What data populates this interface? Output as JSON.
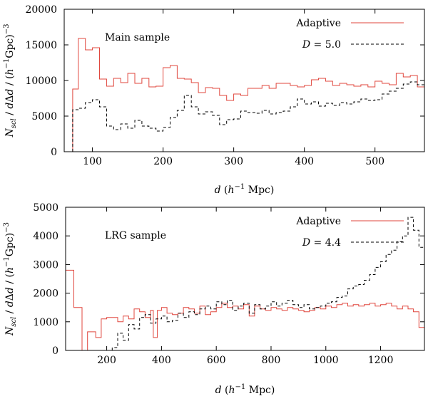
{
  "colors": {
    "adaptive": "#e0473e",
    "fixed": "#000000",
    "axis": "#000000"
  },
  "chart_data": [
    {
      "type": "step",
      "title": "",
      "annotation": "Main sample",
      "xlabel": "d (h⁻¹ Mpc)",
      "ylabel": "N_scl / dΔd / (h⁻¹Gpc)⁻³",
      "xlim": [
        60,
        570
      ],
      "ylim": [
        0,
        20000
      ],
      "xticks": [
        "100",
        "200",
        "300",
        "400",
        "500"
      ],
      "xtick_values": [
        100,
        200,
        300,
        400,
        500
      ],
      "yticks": [
        "0",
        "5000",
        "10000",
        "15000",
        "20000"
      ],
      "ytick_values": [
        0,
        5000,
        10000,
        15000,
        20000
      ],
      "legend_position": "top-right",
      "series": [
        {
          "name": "Adaptive",
          "style": "solid",
          "edges": [
            72,
            80,
            90,
            100,
            110,
            120,
            130,
            140,
            150,
            160,
            170,
            180,
            190,
            200,
            210,
            220,
            230,
            240,
            250,
            260,
            270,
            280,
            290,
            300,
            310,
            320,
            330,
            340,
            350,
            360,
            370,
            380,
            390,
            400,
            410,
            420,
            430,
            440,
            450,
            460,
            470,
            480,
            490,
            500,
            510,
            520,
            530,
            540,
            550,
            560,
            570
          ],
          "values": [
            8800,
            15900,
            14300,
            14600,
            10200,
            9200,
            10300,
            9700,
            11000,
            9600,
            10300,
            9100,
            9200,
            11800,
            12100,
            10300,
            10200,
            9700,
            8300,
            9000,
            8900,
            7900,
            7200,
            8100,
            7900,
            8900,
            8900,
            9300,
            8900,
            9600,
            9600,
            9300,
            9100,
            9300,
            10100,
            10300,
            9900,
            9300,
            9600,
            9400,
            9200,
            9400,
            9100,
            9900,
            9600,
            9400,
            11000,
            10500,
            10700,
            9100
          ]
        },
        {
          "name": "D = 5.0",
          "style": "dashed",
          "edges": [
            72,
            80,
            90,
            100,
            110,
            120,
            130,
            140,
            150,
            160,
            170,
            180,
            190,
            200,
            210,
            220,
            230,
            240,
            250,
            260,
            270,
            280,
            290,
            300,
            310,
            320,
            330,
            340,
            350,
            360,
            370,
            380,
            390,
            400,
            410,
            420,
            430,
            440,
            450,
            460,
            470,
            480,
            490,
            500,
            510,
            520,
            530,
            540,
            550,
            560,
            570
          ],
          "values": [
            5900,
            6100,
            6900,
            7300,
            6300,
            3600,
            3100,
            3900,
            3300,
            4400,
            3600,
            3300,
            2900,
            3400,
            4800,
            5800,
            7900,
            6300,
            5300,
            5600,
            5100,
            3800,
            4500,
            4600,
            5700,
            5500,
            5400,
            5800,
            5300,
            5500,
            5700,
            6300,
            7400,
            6700,
            7000,
            6400,
            6800,
            6500,
            6900,
            6700,
            7000,
            7400,
            7200,
            7300,
            8100,
            8500,
            8900,
            9500,
            9800,
            9400
          ]
        }
      ]
    },
    {
      "type": "step",
      "title": "",
      "annotation": "LRG sample",
      "xlabel": "d (h⁻¹ Mpc)",
      "ylabel": "N_scl / dΔd / (h⁻¹Gpc)⁻³",
      "xlim": [
        50,
        1360
      ],
      "ylim": [
        0,
        5000
      ],
      "xticks": [
        "200",
        "400",
        "600",
        "800",
        "1000",
        "1200"
      ],
      "xtick_values": [
        200,
        400,
        600,
        800,
        1000,
        1200
      ],
      "yticks": [
        "0",
        "1000",
        "2000",
        "3000",
        "4000",
        "5000"
      ],
      "ytick_values": [
        0,
        1000,
        2000,
        3000,
        4000,
        5000
      ],
      "legend_position": "top-right",
      "series": [
        {
          "name": "Adaptive",
          "style": "solid",
          "edges": [
            50,
            80,
            110,
            130,
            160,
            180,
            200,
            220,
            240,
            260,
            280,
            300,
            320,
            340,
            360,
            370,
            385,
            400,
            420,
            440,
            460,
            480,
            500,
            520,
            540,
            560,
            580,
            600,
            620,
            640,
            660,
            680,
            700,
            720,
            740,
            760,
            780,
            800,
            820,
            840,
            860,
            880,
            900,
            920,
            940,
            960,
            980,
            1000,
            1020,
            1040,
            1060,
            1080,
            1100,
            1120,
            1140,
            1160,
            1180,
            1200,
            1220,
            1240,
            1260,
            1280,
            1300,
            1320,
            1340,
            1360
          ],
          "values": [
            2800,
            1500,
            0,
            650,
            450,
            1100,
            1150,
            1150,
            1000,
            1200,
            1100,
            1450,
            1350,
            1150,
            1400,
            450,
            1400,
            1500,
            1300,
            1250,
            1300,
            1500,
            1450,
            1300,
            1550,
            1250,
            1350,
            1500,
            1650,
            1500,
            1550,
            1450,
            1600,
            1200,
            1550,
            1450,
            1400,
            1500,
            1450,
            1400,
            1500,
            1450,
            1400,
            1350,
            1400,
            1500,
            1450,
            1550,
            1500,
            1600,
            1650,
            1550,
            1600,
            1550,
            1600,
            1650,
            1550,
            1600,
            1650,
            1550,
            1450,
            1550,
            1450,
            1350,
            800
          ]
        },
        {
          "name": "D = 4.4",
          "style": "dashed",
          "edges": [
            220,
            240,
            260,
            280,
            300,
            320,
            340,
            360,
            380,
            400,
            420,
            440,
            460,
            480,
            500,
            520,
            540,
            560,
            580,
            600,
            620,
            640,
            660,
            680,
            700,
            720,
            740,
            760,
            780,
            800,
            820,
            840,
            860,
            880,
            900,
            920,
            940,
            960,
            980,
            1000,
            1020,
            1040,
            1060,
            1080,
            1100,
            1120,
            1140,
            1160,
            1180,
            1200,
            1220,
            1240,
            1260,
            1280,
            1300,
            1320,
            1340,
            1360
          ],
          "values": [
            100,
            600,
            350,
            900,
            750,
            1150,
            1250,
            950,
            1100,
            1200,
            1000,
            1050,
            1300,
            1150,
            1350,
            1250,
            1450,
            1550,
            1450,
            1700,
            1600,
            1750,
            1400,
            1550,
            1650,
            1300,
            1600,
            1450,
            1550,
            1700,
            1550,
            1650,
            1750,
            1600,
            1500,
            1600,
            1450,
            1500,
            1550,
            1650,
            1700,
            1850,
            1900,
            2150,
            2250,
            2300,
            2450,
            2650,
            2900,
            3100,
            3350,
            3500,
            3800,
            4000,
            4650,
            4200,
            3600
          ]
        }
      ]
    }
  ]
}
